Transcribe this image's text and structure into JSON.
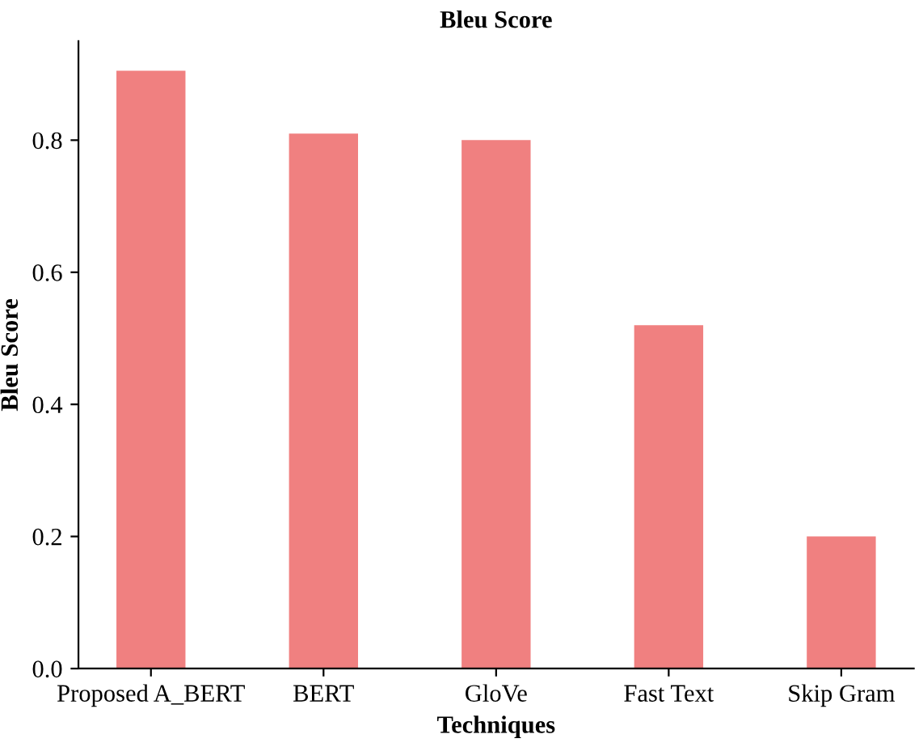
{
  "chart_data": {
    "type": "bar",
    "title": "Bleu Score",
    "xlabel": "Techniques",
    "ylabel": "Bleu Score",
    "categories": [
      "Proposed A_BERT",
      "BERT",
      "GloVe",
      "Fast Text",
      "Skip Gram"
    ],
    "values": [
      0.905,
      0.81,
      0.8,
      0.52,
      0.2
    ],
    "color": "#f08080",
    "ylim": [
      0,
      0.95
    ],
    "yticks": [
      {
        "value": 0,
        "label": "0.0"
      },
      0.2,
      0.4,
      0.6,
      0.8
    ],
    "grid": false,
    "legend": false
  }
}
